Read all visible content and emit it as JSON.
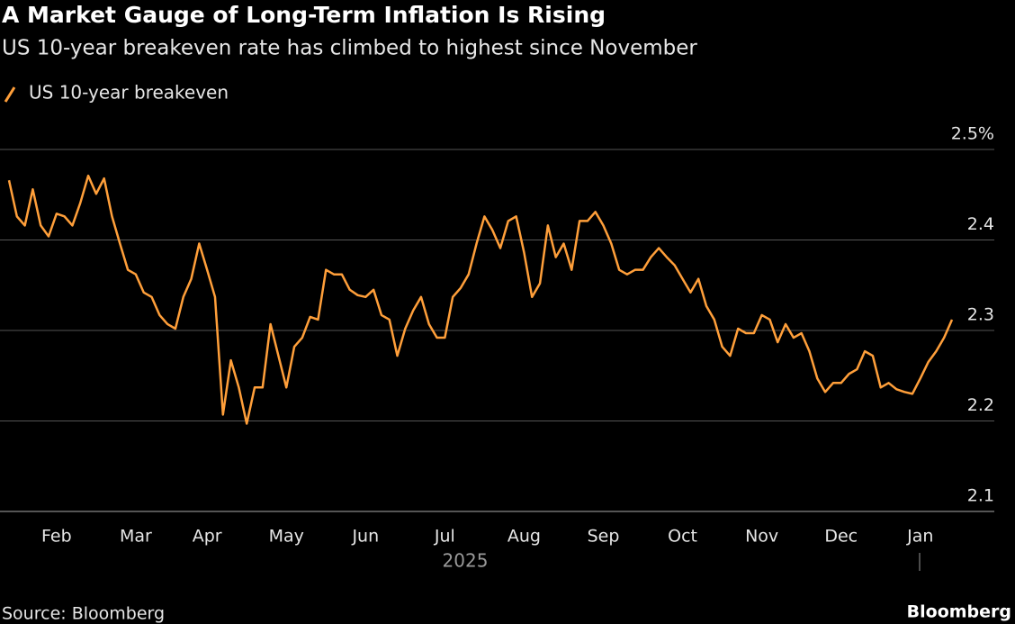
{
  "chart_data": {
    "type": "line",
    "title": "A Market Gauge of Long-Term Inflation Is Rising",
    "subtitle": "US 10-year breakeven rate has climbed to highest since November",
    "x_label": "2025",
    "source": "Source: Bloomberg",
    "brand": "Bloomberg",
    "categories": [
      null,
      null,
      null,
      null,
      null,
      null,
      "Feb",
      null,
      null,
      null,
      null,
      null,
      null,
      null,
      null,
      null,
      "Mar",
      null,
      null,
      null,
      null,
      null,
      null,
      null,
      null,
      "Apr",
      null,
      null,
      null,
      null,
      null,
      null,
      null,
      null,
      null,
      "May",
      null,
      null,
      null,
      null,
      null,
      null,
      null,
      null,
      null,
      "Jun",
      null,
      null,
      null,
      null,
      null,
      null,
      null,
      null,
      null,
      "Jul",
      null,
      null,
      null,
      null,
      null,
      null,
      null,
      null,
      null,
      "Aug",
      null,
      null,
      null,
      null,
      null,
      null,
      null,
      null,
      null,
      "Sep",
      null,
      null,
      null,
      null,
      null,
      null,
      null,
      null,
      null,
      "Oct",
      null,
      null,
      null,
      null,
      null,
      null,
      null,
      null,
      null,
      "Nov",
      null,
      null,
      null,
      null,
      null,
      null,
      null,
      null,
      null,
      "Dec",
      null,
      null,
      null,
      null,
      null,
      null,
      null,
      null,
      null,
      "Jan",
      null,
      null,
      null,
      null
    ],
    "series": [
      {
        "name": "US 10-year breakeven",
        "color": "#ff9f3a",
        "values": [
          2.466,
          2.426,
          2.416,
          2.456,
          2.416,
          2.404,
          2.429,
          2.426,
          2.416,
          2.441,
          2.471,
          2.451,
          2.468,
          2.426,
          2.396,
          2.367,
          2.362,
          2.342,
          2.337,
          2.317,
          2.307,
          2.302,
          2.337,
          2.357,
          2.396,
          2.367,
          2.337,
          2.207,
          2.267,
          2.237,
          2.197,
          2.237,
          2.237,
          2.307,
          2.272,
          2.237,
          2.282,
          2.292,
          2.315,
          2.312,
          2.367,
          2.362,
          2.362,
          2.345,
          2.339,
          2.337,
          2.345,
          2.317,
          2.312,
          2.272,
          2.302,
          2.322,
          2.337,
          2.307,
          2.292,
          2.292,
          2.337,
          2.347,
          2.362,
          2.396,
          2.426,
          2.411,
          2.391,
          2.421,
          2.426,
          2.386,
          2.337,
          2.352,
          2.416,
          2.381,
          2.396,
          2.367,
          2.421,
          2.421,
          2.431,
          2.416,
          2.396,
          2.367,
          2.362,
          2.367,
          2.367,
          2.381,
          2.391,
          2.381,
          2.372,
          2.357,
          2.342,
          2.357,
          2.327,
          2.312,
          2.282,
          2.272,
          2.302,
          2.297,
          2.297,
          2.317,
          2.312,
          2.287,
          2.307,
          2.292,
          2.297,
          2.277,
          2.247,
          2.232,
          2.242,
          2.242,
          2.252,
          2.257,
          2.277,
          2.272,
          2.237,
          2.242,
          2.235,
          2.232,
          2.23,
          2.247,
          2.265,
          2.277,
          2.292,
          2.312
        ]
      }
    ],
    "ylim": [
      2.1,
      2.5
    ],
    "yticks": [
      2.1,
      2.2,
      2.3,
      2.4,
      {
        "value": 2.5,
        "label": "2.5%"
      }
    ],
    "grid": true
  }
}
